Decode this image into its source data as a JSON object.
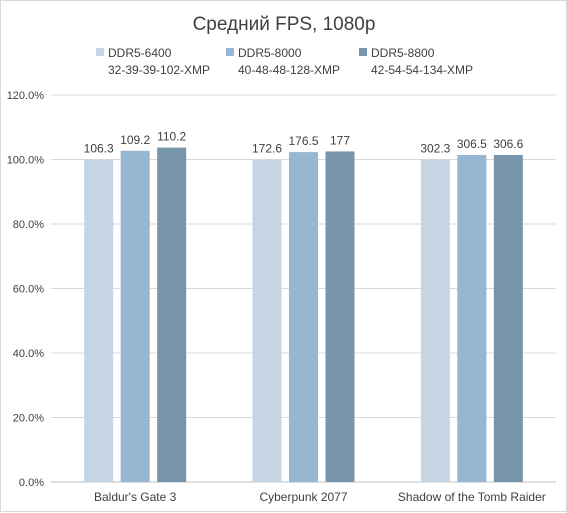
{
  "chart_data": {
    "type": "bar",
    "title": "Средний FPS, 1080p",
    "categories": [
      "Baldur's Gate 3",
      "Cyberpunk 2077",
      "Shadow of the Tomb Raider"
    ],
    "series": [
      {
        "name": "DDR5-6400",
        "timings": "32-39-39-102-XMP",
        "color": "#c5d5e4",
        "values": [
          100.0,
          100.0,
          100.0
        ],
        "labels": [
          "106.3",
          "172.6",
          "302.3"
        ]
      },
      {
        "name": "DDR5-8000",
        "timings": "40-48-48-128-XMP",
        "color": "#97b6d1",
        "values": [
          102.7,
          102.3,
          101.4
        ],
        "labels": [
          "109.2",
          "176.5",
          "306.5"
        ]
      },
      {
        "name": "DDR5-8800",
        "timings": "42-54-54-134-XMP",
        "color": "#7896ab",
        "values": [
          103.7,
          102.5,
          101.4
        ],
        "labels": [
          "110.2",
          "177",
          "306.6"
        ]
      }
    ],
    "y_ticks": [
      "0.0%",
      "20.0%",
      "40.0%",
      "60.0%",
      "80.0%",
      "100.0%",
      "120.0%"
    ],
    "ylim": [
      0,
      120
    ],
    "grid": true,
    "legend_position": "top"
  }
}
